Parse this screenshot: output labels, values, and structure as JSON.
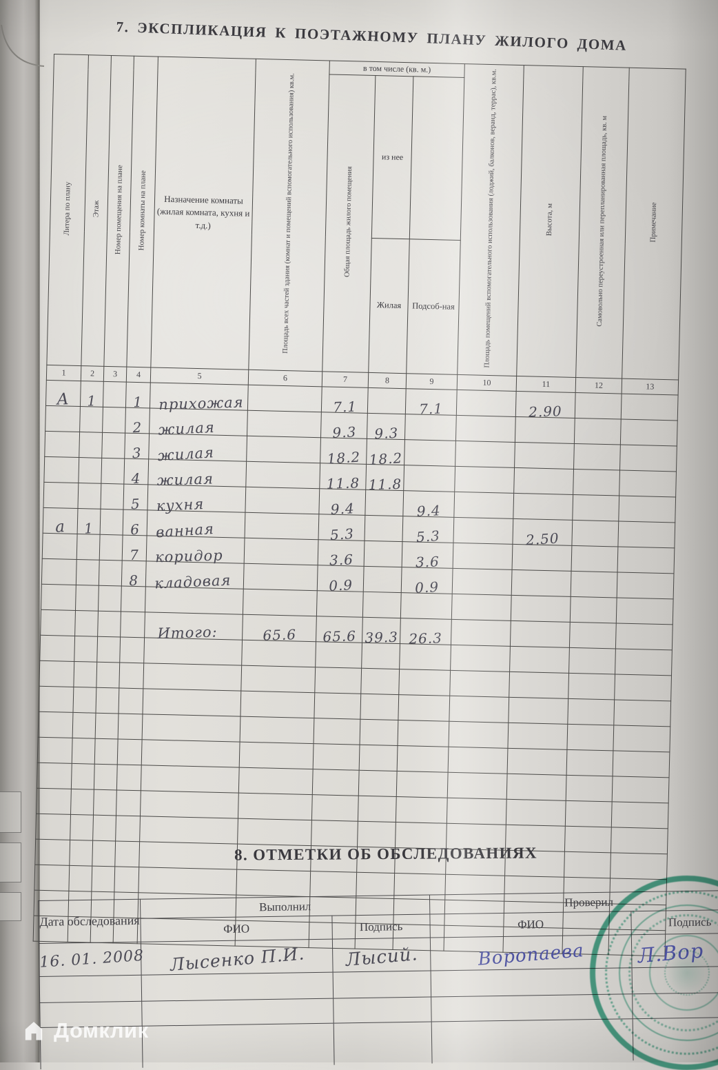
{
  "page": {
    "section7_title": "7. ЭКСПЛИКАЦИЯ К ПОЭТАЖНОМУ ПЛАНУ ЖИЛОГО ДОМА",
    "section8_title": "8. ОТМЕТКИ ОБ ОБСЛЕДОВАНИЯХ",
    "watermark": "Домклик"
  },
  "colors": {
    "stamp_green": "#249e7c",
    "ink_blue": "#4d52a0",
    "ink_dark": "#4b4a55",
    "table_line": "#4a4947"
  },
  "explication_table": {
    "headers": {
      "col1": "Литера по плану",
      "col2": "Этаж",
      "col3": "Номер помещения на плане",
      "col4": "Номер комнаты на плане",
      "col5": "Назначение комнаты (жилая комната, кухня и т.д.)",
      "col6": "Площадь всех частей здания (комнат и помещений вспомогательного использования) кв.м.",
      "group_including": "в том числе (кв. м.)",
      "col7": "Общая площадь жилого помещения",
      "group_of_it": "из нее",
      "col8": "Жилая",
      "col9": "Подсоб-ная",
      "col10": "Площадь помещений вспомогательного использования (лоджий, балконов, веранд, террас), кв.м.",
      "col11": "Высота, м",
      "col12": "Самовольно переустроенная или перепланированная площадь, кв. м",
      "col13": "Примечание"
    },
    "column_numbers": [
      "1",
      "2",
      "3",
      "4",
      "5",
      "6",
      "7",
      "8",
      "9",
      "10",
      "11",
      "12",
      "13"
    ],
    "rows": [
      [
        "А",
        "1",
        "",
        "1",
        "прихожая",
        "",
        "7.1",
        "",
        "7.1",
        "",
        "2.90",
        "",
        ""
      ],
      [
        "",
        "",
        "",
        "2",
        "жилая",
        "",
        "9.3",
        "9.3",
        "",
        "",
        "",
        "",
        ""
      ],
      [
        "",
        "",
        "",
        "3",
        "жилая",
        "",
        "18.2",
        "18.2",
        "",
        "",
        "",
        "",
        ""
      ],
      [
        "",
        "",
        "",
        "4",
        "жилая",
        "",
        "11.8",
        "11.8",
        "",
        "",
        "",
        "",
        ""
      ],
      [
        "",
        "",
        "",
        "5",
        "кухня",
        "",
        "9.4",
        "",
        "9.4",
        "",
        "",
        "",
        ""
      ],
      [
        "а",
        "1",
        "",
        "6",
        "ванная",
        "",
        "5.3",
        "",
        "5.3",
        "",
        "2.50",
        "",
        ""
      ],
      [
        "",
        "",
        "",
        "7",
        "коридор",
        "",
        "3.6",
        "",
        "3.6",
        "",
        "",
        "",
        ""
      ],
      [
        "",
        "",
        "",
        "8",
        "кладовая",
        "",
        "0.9",
        "",
        "0.9",
        "",
        "",
        "",
        ""
      ],
      [
        "",
        "",
        "",
        "",
        "",
        "",
        "",
        "",
        "",
        "",
        "",
        "",
        ""
      ],
      [
        "",
        "",
        "",
        "",
        "Итого:",
        "65.6",
        "65.6",
        "39.3",
        "26.3",
        "",
        "",
        "",
        ""
      ],
      [
        "",
        "",
        "",
        "",
        "",
        "",
        "",
        "",
        "",
        "",
        "",
        "",
        ""
      ],
      [
        "",
        "",
        "",
        "",
        "",
        "",
        "",
        "",
        "",
        "",
        "",
        "",
        ""
      ],
      [
        "",
        "",
        "",
        "",
        "",
        "",
        "",
        "",
        "",
        "",
        "",
        "",
        ""
      ],
      [
        "",
        "",
        "",
        "",
        "",
        "",
        "",
        "",
        "",
        "",
        "",
        "",
        ""
      ],
      [
        "",
        "",
        "",
        "",
        "",
        "",
        "",
        "",
        "",
        "",
        "",
        "",
        ""
      ],
      [
        "",
        "",
        "",
        "",
        "",
        "",
        "",
        "",
        "",
        "",
        "",
        "",
        ""
      ],
      [
        "",
        "",
        "",
        "",
        "",
        "",
        "",
        "",
        "",
        "",
        "",
        "",
        ""
      ],
      [
        "",
        "",
        "",
        "",
        "",
        "",
        "",
        "",
        "",
        "",
        "",
        "",
        ""
      ],
      [
        "",
        "",
        "",
        "",
        "",
        "",
        "",
        "",
        "",
        "",
        "",
        "",
        ""
      ],
      [
        "",
        "",
        "",
        "",
        "",
        "",
        "",
        "",
        "",
        "",
        "",
        "",
        ""
      ],
      [
        "",
        "",
        "",
        "",
        "",
        "",
        "",
        "",
        "",
        "",
        "",
        "",
        ""
      ],
      [
        "",
        "",
        "",
        "",
        "",
        "",
        "",
        "",
        "",
        "",
        "",
        "",
        ""
      ]
    ]
  },
  "survey_table": {
    "date_header": "Дата обследования",
    "performed_header": "Выполнил",
    "checked_header": "Проверил",
    "fio_header": "ФИО",
    "signature_header": "Подпись",
    "record": {
      "date": "16. 01. 2008",
      "performer_fio": "Лысенко П.И.",
      "performer_signature": "Лысий.",
      "checker_fio": "Воропаева",
      "checker_signature": "Л.Вор"
    }
  }
}
